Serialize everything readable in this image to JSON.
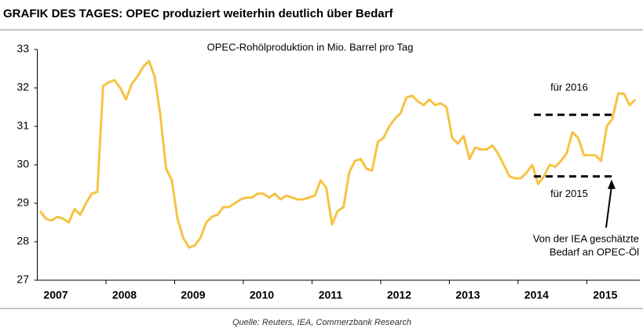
{
  "chart_data": {
    "type": "line",
    "title": "GRAFIK DES TAGES: OPEC produziert weiterhin deutlich über Bedarf",
    "subtitle": "OPEC-Rohölproduktion in Mio. Barrel pro Tag",
    "source": "Quelle: Reuters, IEA, Commerzbank Research",
    "categories": [
      null,
      null,
      null,
      "2007",
      null,
      null,
      null,
      null,
      null,
      null,
      null,
      null,
      null,
      null,
      null,
      "2008",
      null,
      null,
      null,
      null,
      null,
      null,
      null,
      null,
      null,
      null,
      null,
      "2009",
      null,
      null,
      null,
      null,
      null,
      null,
      null,
      null,
      null,
      null,
      null,
      "2010",
      null,
      null,
      null,
      null,
      null,
      null,
      null,
      null,
      null,
      null,
      null,
      "2011",
      null,
      null,
      null,
      null,
      null,
      null,
      null,
      null,
      null,
      null,
      null,
      "2012",
      null,
      null,
      null,
      null,
      null,
      null,
      null,
      null,
      null,
      null,
      null,
      "2013",
      null,
      null,
      null,
      null,
      null,
      null,
      null,
      null,
      null,
      null,
      null,
      "2014",
      null,
      null,
      null,
      null,
      null,
      null,
      null,
      null,
      null,
      null,
      null,
      "2015",
      null,
      null,
      null,
      null,
      null
    ],
    "series": [
      {
        "name": "OPEC-Rohölproduktion",
        "color": "#f6c343",
        "values": [
          28.8,
          28.6,
          28.55,
          28.65,
          28.6,
          28.5,
          28.85,
          28.7,
          29.0,
          29.25,
          29.3,
          32.05,
          32.15,
          32.2,
          32.0,
          31.7,
          32.1,
          32.3,
          32.55,
          32.7,
          32.3,
          31.3,
          29.9,
          29.6,
          28.6,
          28.1,
          27.85,
          27.9,
          28.1,
          28.5,
          28.65,
          28.7,
          28.9,
          28.9,
          29.0,
          29.1,
          29.15,
          29.15,
          29.25,
          29.25,
          29.15,
          29.25,
          29.1,
          29.2,
          29.15,
          29.1,
          29.1,
          29.15,
          29.2,
          29.6,
          29.4,
          28.45,
          28.8,
          28.9,
          29.8,
          30.1,
          30.15,
          29.9,
          29.85,
          30.6,
          30.7,
          31.0,
          31.2,
          31.35,
          31.75,
          31.8,
          31.65,
          31.55,
          31.7,
          31.55,
          31.6,
          31.5,
          30.7,
          30.55,
          30.75,
          30.15,
          30.45,
          30.4,
          30.4,
          30.5,
          30.3,
          30.0,
          29.7,
          29.65,
          29.65,
          29.8,
          30.0,
          29.5,
          29.7,
          30.0,
          29.95,
          30.1,
          30.3,
          30.85,
          30.7,
          30.25,
          30.25,
          30.25,
          30.1,
          31.0,
          31.2,
          31.85,
          31.85,
          31.55,
          31.7
        ]
      }
    ],
    "ylim": [
      27,
      33
    ],
    "yticks": [
      27,
      28,
      29,
      30,
      31,
      32,
      33
    ],
    "reference_lines": [
      {
        "label": "für 2016",
        "value": 31.3
      },
      {
        "label": "für 2015",
        "value": 29.7
      }
    ],
    "annotation": [
      "Von der IEA geschätzte",
      "Bedarf an OPEC-Öl"
    ]
  }
}
